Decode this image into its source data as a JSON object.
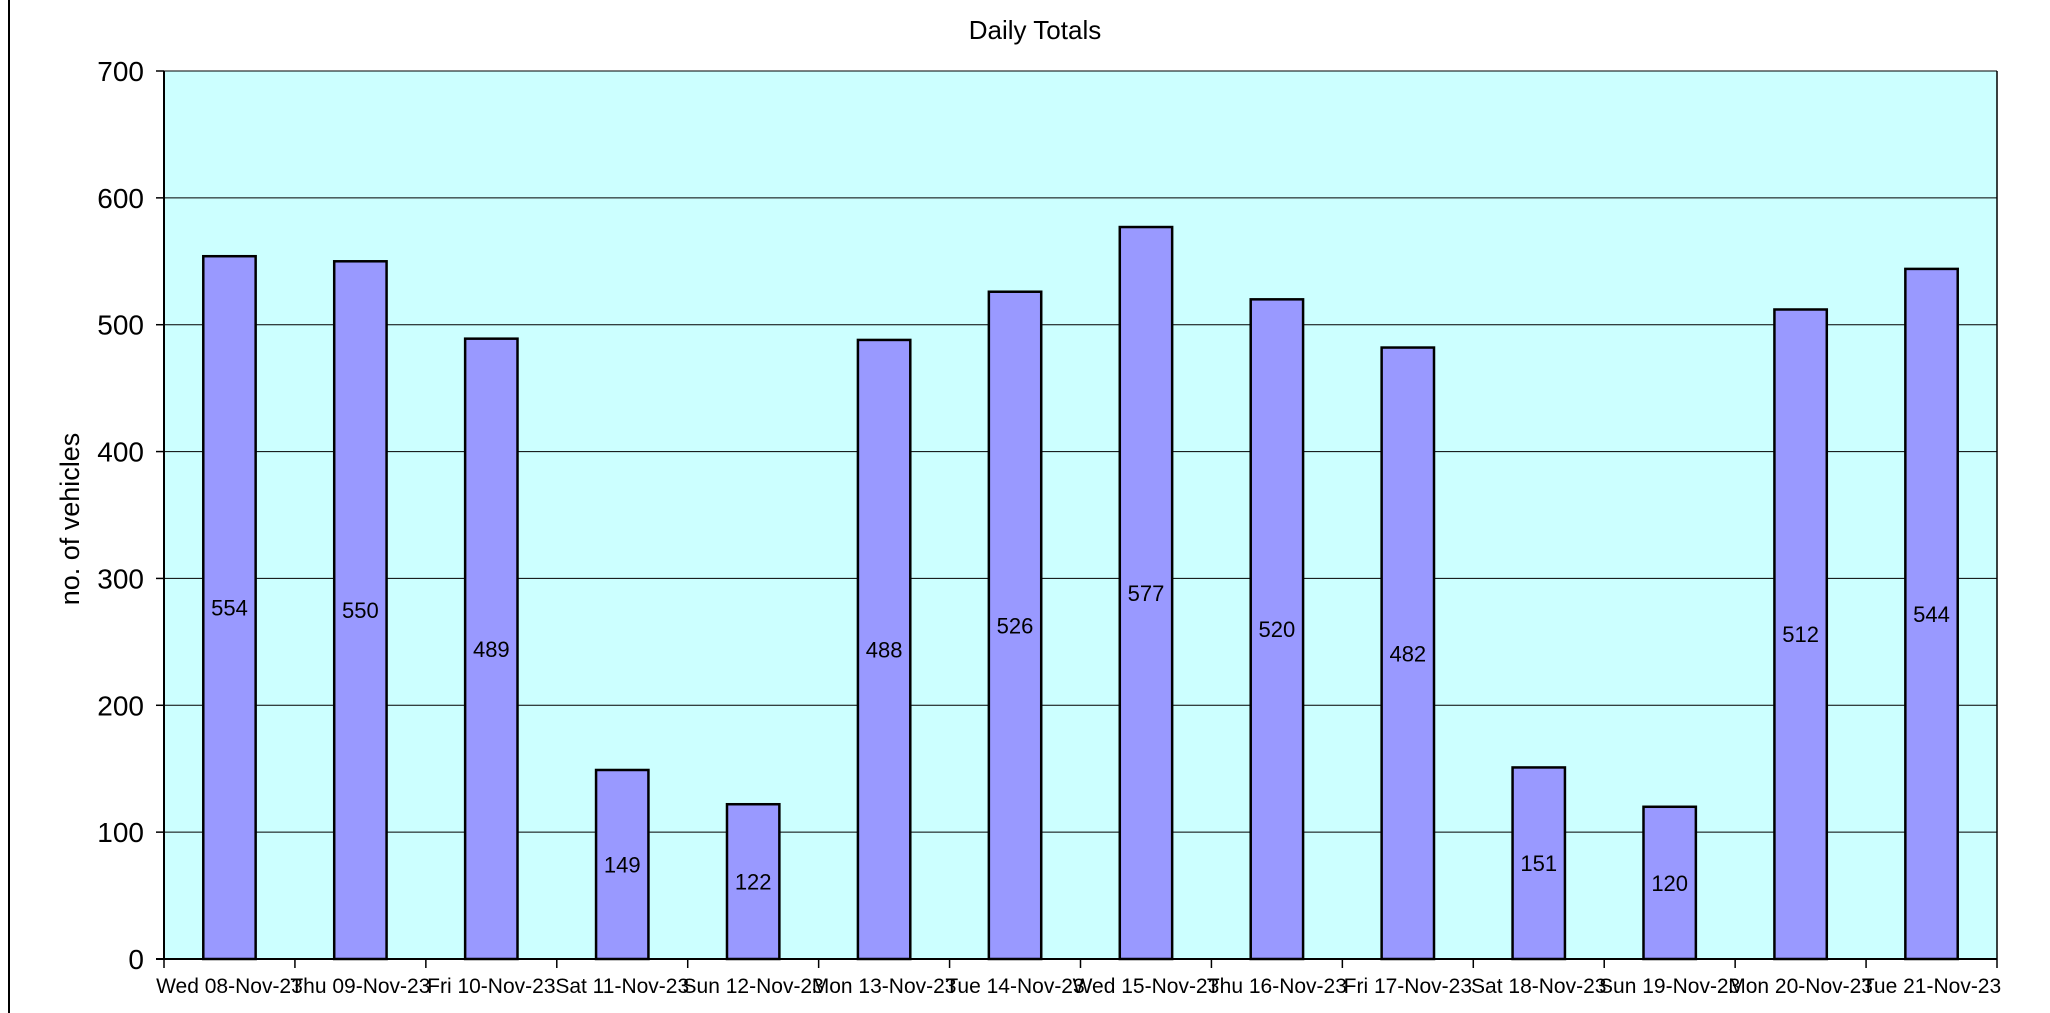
{
  "chart_data": {
    "type": "bar",
    "title": "Daily Totals",
    "xlabel": "",
    "ylabel": "no. of vehicles",
    "ylim": [
      0,
      700
    ],
    "yticks": [
      0,
      100,
      200,
      300,
      400,
      500,
      600,
      700
    ],
    "grid": true,
    "legend": "none",
    "categories": [
      "Wed 08-Nov-23",
      "Thu 09-Nov-23",
      "Fri 10-Nov-23",
      "Sat 11-Nov-23",
      "Sun 12-Nov-23",
      "Mon 13-Nov-23",
      "Tue 14-Nov-23",
      "Wed 15-Nov-23",
      "Thu 16-Nov-23",
      "Fri 17-Nov-23",
      "Sat 18-Nov-23",
      "Sun 19-Nov-23",
      "Mon 20-Nov-23",
      "Tue 21-Nov-23"
    ],
    "values": [
      554,
      550,
      489,
      149,
      122,
      488,
      526,
      577,
      520,
      482,
      151,
      120,
      512,
      544
    ],
    "colors": {
      "plot_background": "#ccffff",
      "bar_fill": "#9999ff",
      "bar_stroke": "#000000",
      "gridline": "#000000"
    }
  }
}
